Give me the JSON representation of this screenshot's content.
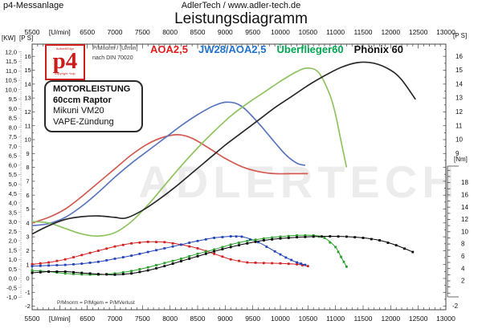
{
  "header": {
    "app_label": "p4-Messanlage",
    "site": "AdlerTech / www.adler-tech.de",
    "title": "Leistungsdiagramm"
  },
  "logo": {
    "top_text": "AutomBSign",
    "text": "p4",
    "bottom_text": "copyright *hdp"
  },
  "measurement_note": {
    "line1": "P/Mnorm / [U/min]",
    "line2": "nach DIN 70020"
  },
  "info_box": {
    "lines": [
      "MOTORLEISTUNG",
      "60ccm Raptor",
      "Mikuni VM20",
      "VAPE-Zündung"
    ]
  },
  "footer_note": "P/Mnorm = P/Mgem = P/MVerlust",
  "watermark": "ADLERTECH",
  "legend": [
    {
      "label": "AOA2,5",
      "color": "#e01e1e"
    },
    {
      "label": "JW28/AOA2,5",
      "color": "#2272cc"
    },
    {
      "label": "Überflieger60",
      "color": "#00a651"
    },
    {
      "label": "Phönix 60",
      "color": "#111111"
    }
  ],
  "chart_data": {
    "type": "line",
    "title": "Leistungsdiagramm",
    "x_axis": {
      "unit": "[U/min]",
      "min": 5500,
      "max": 13000,
      "tick_step": 500,
      "minor_step": 100,
      "tick_labels": [
        "5500",
        "[U/min]",
        "6500",
        "7000",
        "7500",
        "8000",
        "8500",
        "9000",
        "9500",
        "10000",
        "10500",
        "11000",
        "11500",
        "12000",
        "12500",
        "13000"
      ]
    },
    "y_axis_kw": {
      "header": "[KW]",
      "min": -1.0,
      "max": 12.0,
      "step": 0.5,
      "labels": [
        "12,0",
        "11,5",
        "11,0",
        "10,5",
        "10,0",
        "9,5",
        "9,0",
        "8,5",
        "8,0",
        "7,5",
        "7,0",
        "6,5",
        "6,0",
        "5,5",
        "5,0",
        "4,5",
        "4,0",
        "3,5",
        "3,0",
        "2,5",
        "2,0",
        "1,5",
        "1,0",
        "0,5",
        "0,0",
        "-0,5",
        "-1,0"
      ]
    },
    "y_axis_ps": {
      "header": "[P S]",
      "min": -2,
      "max": 16,
      "step": 1
    },
    "y_axis_nm": {
      "header": "[Nm]",
      "labels": [
        "18",
        "16",
        "14",
        "12",
        "10",
        "8",
        "6",
        "4",
        "2"
      ],
      "step": 2
    },
    "right_ps_labels": [
      "16",
      "15",
      "14",
      "13",
      "12",
      "11",
      "10",
      "9"
    ],
    "right_bottom_label": "-2",
    "grid": false,
    "legend_position": "top",
    "series": [
      {
        "id": "aoa25-power",
        "name": "AOA2,5",
        "kind": "power",
        "unit": "PS",
        "color": "#d25a50",
        "points": [
          [
            5500,
            4.0
          ],
          [
            5800,
            4.4
          ],
          [
            6100,
            5.0
          ],
          [
            6400,
            5.9
          ],
          [
            6700,
            6.9
          ],
          [
            7000,
            7.9
          ],
          [
            7300,
            8.9
          ],
          [
            7600,
            9.7
          ],
          [
            7900,
            10.2
          ],
          [
            8150,
            10.35
          ],
          [
            8400,
            10.1
          ],
          [
            8700,
            9.4
          ],
          [
            9000,
            8.65
          ],
          [
            9300,
            8.05
          ],
          [
            9600,
            7.7
          ],
          [
            9900,
            7.55
          ],
          [
            10200,
            7.55
          ],
          [
            10500,
            7.55
          ]
        ]
      },
      {
        "id": "jw28-power",
        "name": "JW28/AOA2,5",
        "kind": "power",
        "unit": "PS",
        "color": "#5b76c0",
        "points": [
          [
            5500,
            3.8
          ],
          [
            5800,
            3.95
          ],
          [
            6100,
            4.4
          ],
          [
            6400,
            5.2
          ],
          [
            6700,
            6.2
          ],
          [
            7000,
            7.3
          ],
          [
            7300,
            8.3
          ],
          [
            7600,
            9.2
          ],
          [
            7900,
            10.1
          ],
          [
            8200,
            11.0
          ],
          [
            8500,
            11.8
          ],
          [
            8800,
            12.45
          ],
          [
            9050,
            12.7
          ],
          [
            9300,
            12.4
          ],
          [
            9600,
            11.2
          ],
          [
            9900,
            9.8
          ],
          [
            10100,
            8.9
          ],
          [
            10300,
            8.3
          ],
          [
            10450,
            8.15
          ]
        ]
      },
      {
        "id": "ueberflieger60-power",
        "name": "Überflieger60",
        "kind": "power",
        "unit": "PS",
        "color": "#8fc360",
        "points": [
          [
            5500,
            4.1
          ],
          [
            5800,
            4.0
          ],
          [
            6100,
            3.6
          ],
          [
            6400,
            3.2
          ],
          [
            6700,
            3.05
          ],
          [
            7000,
            3.3
          ],
          [
            7300,
            4.1
          ],
          [
            7600,
            5.3
          ],
          [
            7900,
            6.7
          ],
          [
            8200,
            8.1
          ],
          [
            8500,
            9.4
          ],
          [
            8800,
            10.6
          ],
          [
            9100,
            11.7
          ],
          [
            9400,
            12.6
          ],
          [
            9700,
            13.4
          ],
          [
            10000,
            14.2
          ],
          [
            10300,
            14.9
          ],
          [
            10500,
            15.15
          ],
          [
            10700,
            14.8
          ],
          [
            10900,
            13.2
          ],
          [
            11000,
            11.8
          ],
          [
            11100,
            9.9
          ],
          [
            11200,
            8.0
          ]
        ]
      },
      {
        "id": "phoenix60-power",
        "name": "Phönix 60",
        "kind": "power",
        "unit": "PS",
        "color": "#2a2a2a",
        "points": [
          [
            5500,
            3.2
          ],
          [
            5800,
            3.8
          ],
          [
            6100,
            4.25
          ],
          [
            6400,
            4.45
          ],
          [
            6700,
            4.5
          ],
          [
            7000,
            4.4
          ],
          [
            7200,
            4.35
          ],
          [
            7500,
            4.9
          ],
          [
            7800,
            5.7
          ],
          [
            8100,
            6.6
          ],
          [
            8400,
            7.6
          ],
          [
            8700,
            8.6
          ],
          [
            9000,
            9.6
          ],
          [
            9300,
            10.5
          ],
          [
            9600,
            11.4
          ],
          [
            9900,
            12.3
          ],
          [
            10200,
            13.1
          ],
          [
            10500,
            13.9
          ],
          [
            10800,
            14.6
          ],
          [
            11100,
            15.2
          ],
          [
            11400,
            15.55
          ],
          [
            11700,
            15.5
          ],
          [
            12000,
            15.0
          ],
          [
            12200,
            14.3
          ],
          [
            12450,
            12.9
          ]
        ]
      },
      {
        "id": "aoa25-torque",
        "name": "AOA2,5",
        "kind": "torque",
        "unit": "Nm",
        "color": "#d42020",
        "points": [
          [
            5500,
            4.7
          ],
          [
            5800,
            5.0
          ],
          [
            6100,
            5.5
          ],
          [
            6400,
            6.2
          ],
          [
            6700,
            6.9
          ],
          [
            7000,
            7.6
          ],
          [
            7300,
            8.1
          ],
          [
            7600,
            8.35
          ],
          [
            7900,
            8.3
          ],
          [
            8200,
            7.9
          ],
          [
            8500,
            7.3
          ],
          [
            8800,
            6.4
          ],
          [
            9100,
            5.5
          ],
          [
            9400,
            5.0
          ],
          [
            9700,
            4.9
          ],
          [
            10000,
            4.85
          ],
          [
            10300,
            4.7
          ],
          [
            10500,
            4.4
          ]
        ]
      },
      {
        "id": "jw28-torque",
        "name": "JW28/AOA2,5",
        "kind": "torque",
        "unit": "Nm",
        "color": "#2244bb",
        "points": [
          [
            5500,
            4.4
          ],
          [
            5800,
            4.5
          ],
          [
            6100,
            4.6
          ],
          [
            6400,
            4.8
          ],
          [
            6700,
            5.1
          ],
          [
            7000,
            5.6
          ],
          [
            7300,
            6.1
          ],
          [
            7600,
            6.7
          ],
          [
            7900,
            7.3
          ],
          [
            8200,
            7.9
          ],
          [
            8500,
            8.5
          ],
          [
            8800,
            9.0
          ],
          [
            9100,
            9.25
          ],
          [
            9300,
            9.2
          ],
          [
            9600,
            8.3
          ],
          [
            9900,
            6.8
          ],
          [
            10100,
            5.8
          ],
          [
            10300,
            5.0
          ],
          [
            10450,
            4.6
          ]
        ]
      },
      {
        "id": "ueberflieger60-torque",
        "name": "Überflieger60",
        "kind": "torque",
        "unit": "Nm",
        "color": "#28a028",
        "points": [
          [
            5500,
            3.7
          ],
          [
            5800,
            3.5
          ],
          [
            6100,
            3.2
          ],
          [
            6400,
            3.05
          ],
          [
            6700,
            3.0
          ],
          [
            7000,
            3.2
          ],
          [
            7300,
            3.6
          ],
          [
            7600,
            4.2
          ],
          [
            7900,
            4.9
          ],
          [
            8200,
            5.6
          ],
          [
            8500,
            6.4
          ],
          [
            8800,
            7.1
          ],
          [
            9100,
            7.9
          ],
          [
            9400,
            8.5
          ],
          [
            9700,
            8.9
          ],
          [
            10000,
            9.2
          ],
          [
            10300,
            9.4
          ],
          [
            10600,
            9.4
          ],
          [
            10800,
            9.0
          ],
          [
            11000,
            7.5
          ],
          [
            11100,
            5.9
          ],
          [
            11200,
            4.3
          ]
        ]
      },
      {
        "id": "phoenix60-torque",
        "name": "Phönix 60",
        "kind": "torque",
        "unit": "Nm",
        "color": "#000000",
        "points": [
          [
            5500,
            3.3
          ],
          [
            5800,
            3.5
          ],
          [
            6100,
            3.5
          ],
          [
            6400,
            3.3
          ],
          [
            6700,
            3.1
          ],
          [
            7000,
            3.0
          ],
          [
            7300,
            3.2
          ],
          [
            7600,
            3.7
          ],
          [
            7900,
            4.4
          ],
          [
            8200,
            5.2
          ],
          [
            8500,
            6.0
          ],
          [
            8800,
            6.8
          ],
          [
            9100,
            7.5
          ],
          [
            9400,
            8.1
          ],
          [
            9700,
            8.6
          ],
          [
            10000,
            8.9
          ],
          [
            10300,
            9.1
          ],
          [
            10600,
            9.2
          ],
          [
            10900,
            9.25
          ],
          [
            11200,
            9.2
          ],
          [
            11500,
            9.0
          ],
          [
            11800,
            8.6
          ],
          [
            12100,
            7.8
          ],
          [
            12400,
            6.7
          ]
        ]
      }
    ]
  }
}
